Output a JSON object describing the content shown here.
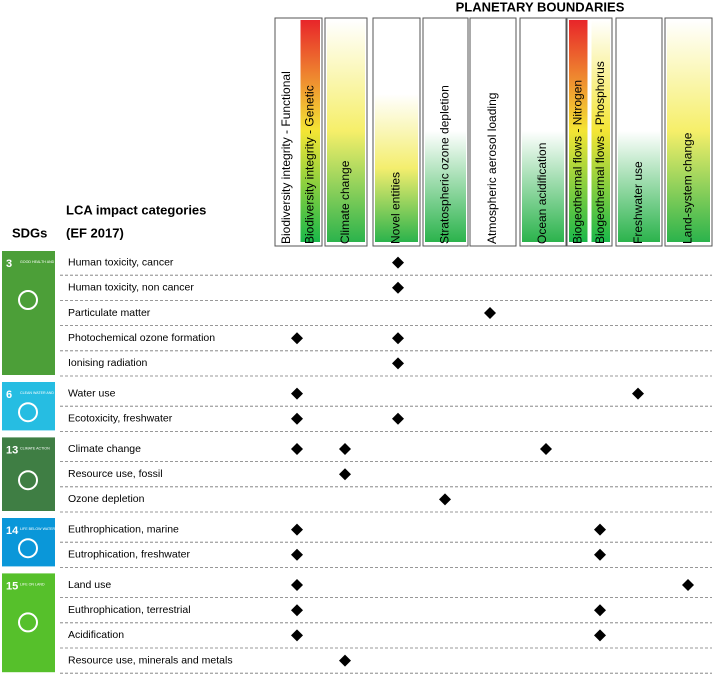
{
  "title": "PLANETARY BOUNDARIES",
  "sdg_heading": "SDGs",
  "lca_heading": [
    "LCA impact categories",
    "(EF 2017)"
  ],
  "columns": [
    {
      "labels": [
        {
          "text": "Biodiversity integrity - Functional",
          "colors": [
            "#ffffff",
            "#ffffff"
          ]
        },
        {
          "text": "Biodiversity integrity - Genetic",
          "colors": [
            "#e8252a",
            "#f4e534",
            "#19b84a"
          ]
        }
      ]
    },
    {
      "labels": [
        {
          "text": "Climate change",
          "colors": [
            "#ffffff",
            "#f6ef6a",
            "#2bb34c"
          ]
        }
      ]
    },
    {
      "labels": [
        {
          "text": "Novel entities",
          "colors": [
            "#ffffff",
            "#ffffff",
            "#f4ee6e",
            "#2bb34c"
          ]
        }
      ]
    },
    {
      "labels": [
        {
          "text": "Stratospheric ozone depletion",
          "colors": [
            "#ffffff",
            "#ffffff",
            "#2bb34c"
          ]
        }
      ]
    },
    {
      "labels": [
        {
          "text": "Atmospheric aerosol loading",
          "colors": [
            "#ffffff",
            "#ffffff"
          ]
        }
      ]
    },
    {
      "labels": [
        {
          "text": "Ocean acidification",
          "colors": [
            "#ffffff",
            "#ffffff",
            "#2bb34c"
          ]
        }
      ]
    },
    {
      "labels": [
        {
          "text": "Biogeothermal flows - Nitrogen",
          "colors": [
            "#e8252a",
            "#f4e534",
            "#19b84a"
          ]
        },
        {
          "text": "Biogeothermal flows - Phosphorus",
          "colors": [
            "#ffffff",
            "#f4e534",
            "#19b84a"
          ]
        }
      ]
    },
    {
      "labels": [
        {
          "text": "Freshwater use",
          "colors": [
            "#ffffff",
            "#ffffff",
            "#2bb34c"
          ]
        }
      ]
    },
    {
      "labels": [
        {
          "text": "Land-system change",
          "colors": [
            "#ffffff",
            "#f6ef6a",
            "#2bb34c"
          ]
        }
      ]
    }
  ],
  "sdgs": [
    {
      "number": "3",
      "name": "GOOD HEALTH AND WELL-BEING",
      "color": "#4c9f38",
      "categories": [
        {
          "label": "Human toxicity, cancer",
          "links": [
            2
          ]
        },
        {
          "label": "Human toxicity, non cancer",
          "links": [
            2
          ]
        },
        {
          "label": "Particulate matter",
          "links": [
            4
          ]
        },
        {
          "label": "Photochemical ozone formation",
          "links": [
            0,
            2
          ]
        },
        {
          "label": "Ionising radiation",
          "links": [
            2
          ]
        }
      ]
    },
    {
      "number": "6",
      "name": "CLEAN WATER AND SANITATION",
      "color": "#26bde2",
      "categories": [
        {
          "label": "Water use",
          "links": [
            0,
            7
          ]
        },
        {
          "label": "Ecotoxicity, freshwater",
          "links": [
            0,
            2
          ]
        }
      ]
    },
    {
      "number": "13",
      "name": "CLIMATE ACTION",
      "color": "#3f7e44",
      "categories": [
        {
          "label": "Climate change",
          "links": [
            0,
            1,
            5
          ]
        },
        {
          "label": "Resource use, fossil",
          "links": [
            1
          ]
        },
        {
          "label": "Ozone depletion",
          "links": [
            3
          ]
        }
      ]
    },
    {
      "number": "14",
      "name": "LIFE BELOW WATER",
      "color": "#0a97d9",
      "categories": [
        {
          "label": "Euthrophication, marine",
          "links": [
            0,
            6
          ]
        },
        {
          "label": "Eutrophication, freshwater",
          "links": [
            0,
            6
          ]
        }
      ]
    },
    {
      "number": "15",
      "name": "LIFE ON LAND",
      "color": "#56c02b",
      "categories": [
        {
          "label": "Land use",
          "links": [
            0,
            8
          ]
        },
        {
          "label": "Euthrophication, terrestrial",
          "links": [
            0,
            6
          ]
        },
        {
          "label": "Acidification",
          "links": [
            0,
            6
          ]
        },
        {
          "label": "Resource use, minerals and metals",
          "links": [
            1
          ]
        }
      ]
    }
  ]
}
